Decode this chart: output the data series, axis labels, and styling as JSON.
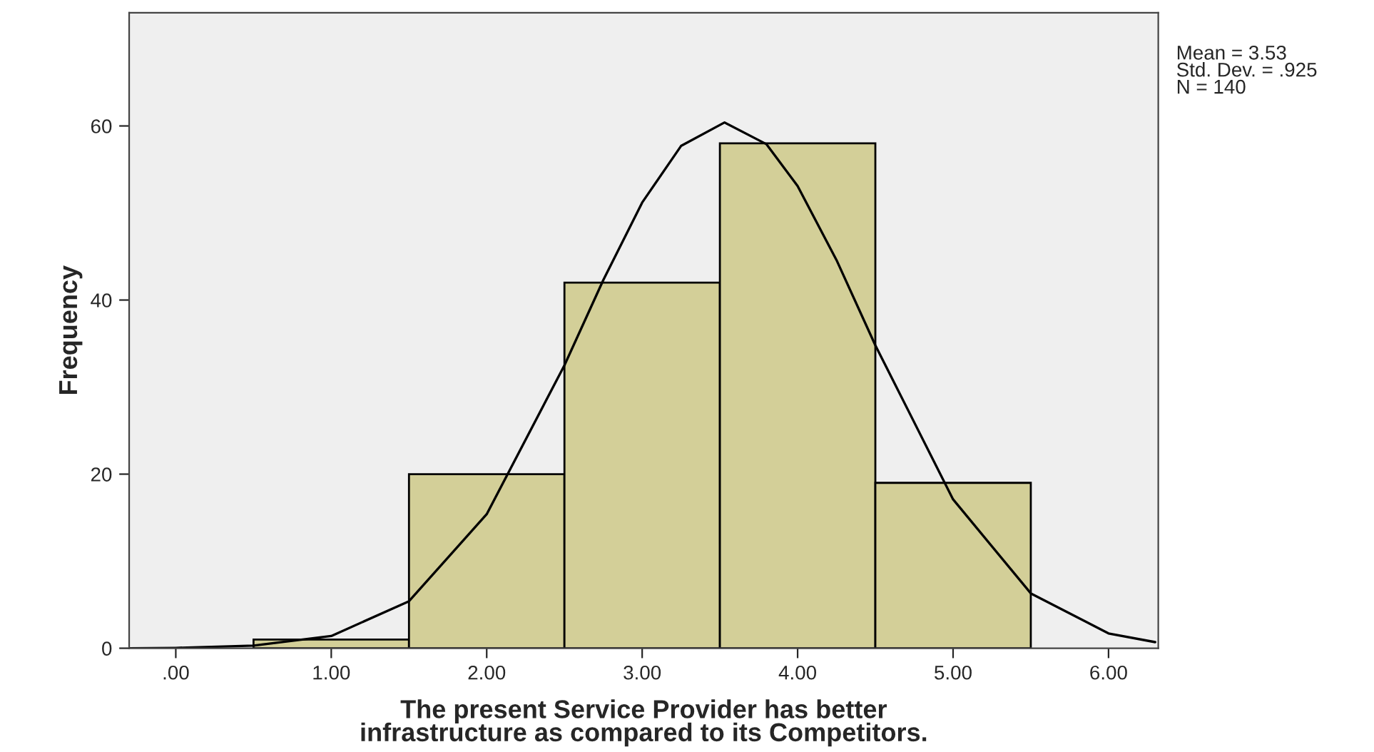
{
  "chart_data": {
    "type": "histogram",
    "xlabel": "The present Service Provider has better\ninfrastructure as compared to its Competitors.",
    "ylabel": "Frequency",
    "bins": [
      0.5,
      1.5,
      2.5,
      3.5,
      4.5,
      5.5
    ],
    "values": [
      1,
      20,
      42,
      58,
      19
    ],
    "color": "#d3cf98",
    "series": [
      {
        "type": "line",
        "color": "#000000",
        "x": [
          -0.3,
          0.0,
          0.5,
          1.0,
          1.5,
          2.0,
          2.5,
          2.75,
          3.0,
          3.25,
          3.53,
          3.8,
          4.0,
          4.25,
          4.5,
          5.0,
          5.5,
          6.0,
          6.3
        ],
        "values": [
          0.0,
          0.04,
          0.3,
          1.4,
          5.4,
          15.4,
          32.5,
          42.3,
          51.2,
          57.7,
          60.4,
          57.9,
          53.1,
          44.6,
          34.8,
          17.1,
          6.3,
          1.7,
          0.7
        ]
      }
    ],
    "xlim": [
      -0.3,
      6.32
    ],
    "ylim": [
      0,
      73
    ],
    "xticks": [
      {
        "value": 0,
        "label": ".00"
      },
      {
        "value": 1,
        "label": "1.00"
      },
      {
        "value": 2,
        "label": "2.00"
      },
      {
        "value": 3,
        "label": "3.00"
      },
      {
        "value": 4,
        "label": "4.00"
      },
      {
        "value": 5,
        "label": "5.00"
      },
      {
        "value": 6,
        "label": "6.00"
      }
    ],
    "yticks": [
      0,
      20,
      40,
      60
    ],
    "annotations": [
      "Mean = 3.53\nStd. Dev. = .925\nN = 140"
    ]
  }
}
